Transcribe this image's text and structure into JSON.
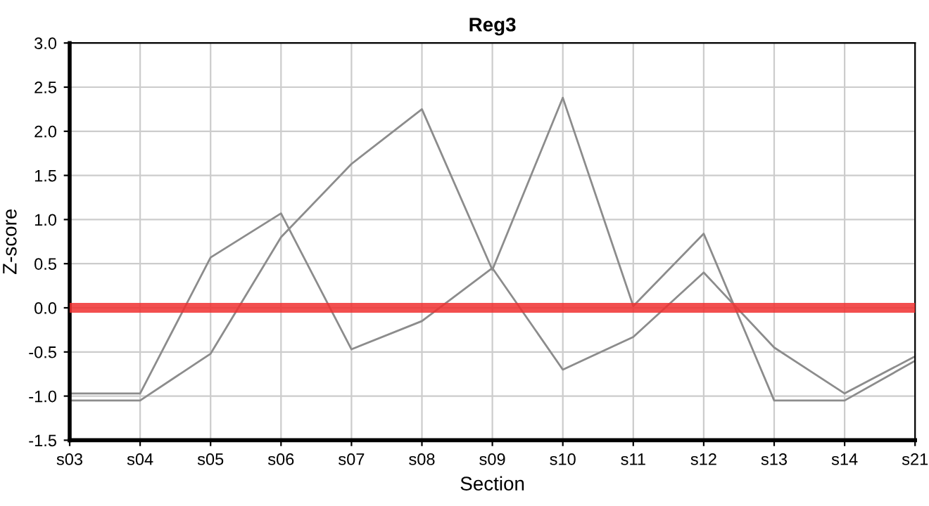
{
  "chart_data": {
    "type": "line",
    "title": "Reg3",
    "xlabel": "Section",
    "ylabel": "Z-score",
    "categories": [
      "s03",
      "s04",
      "s05",
      "s06",
      "s07",
      "s08",
      "s09",
      "s10",
      "s11",
      "s12",
      "s13",
      "s14",
      "s21"
    ],
    "series": [
      {
        "color": "#8c8c8c",
        "values": [
          -0.97,
          -0.97,
          0.57,
          1.07,
          -0.47,
          -0.15,
          0.45,
          -0.7,
          -0.33,
          0.4,
          -0.45,
          -0.97,
          -0.55
        ]
      },
      {
        "color": "#8c8c8c",
        "values": [
          -1.05,
          -1.05,
          -0.52,
          0.8,
          1.63,
          2.25,
          0.43,
          2.38,
          0.02,
          0.84,
          -1.05,
          -1.05,
          -0.6
        ]
      }
    ],
    "ylim": [
      -1.5,
      3.0
    ],
    "yticks": [
      {
        "value": -1.5,
        "label": "-1.5"
      },
      {
        "value": -1.0,
        "label": "-1.0"
      },
      {
        "value": -0.5,
        "label": "-0.5"
      },
      {
        "value": 0,
        "label": "0.0"
      },
      {
        "value": 0.5,
        "label": "0.5"
      },
      {
        "value": 1.0,
        "label": "1.0"
      },
      {
        "value": 1.5,
        "label": "1.5"
      },
      {
        "value": 2.0,
        "label": "2.0"
      },
      {
        "value": 2.5,
        "label": "2.5"
      },
      {
        "value": 3.0,
        "label": "3.0"
      }
    ],
    "ref_lines": [
      {
        "axis": "y",
        "value": 0,
        "color": "#f03030"
      }
    ],
    "grid": true,
    "legend": false,
    "marker": "none",
    "line_style": "solid"
  }
}
